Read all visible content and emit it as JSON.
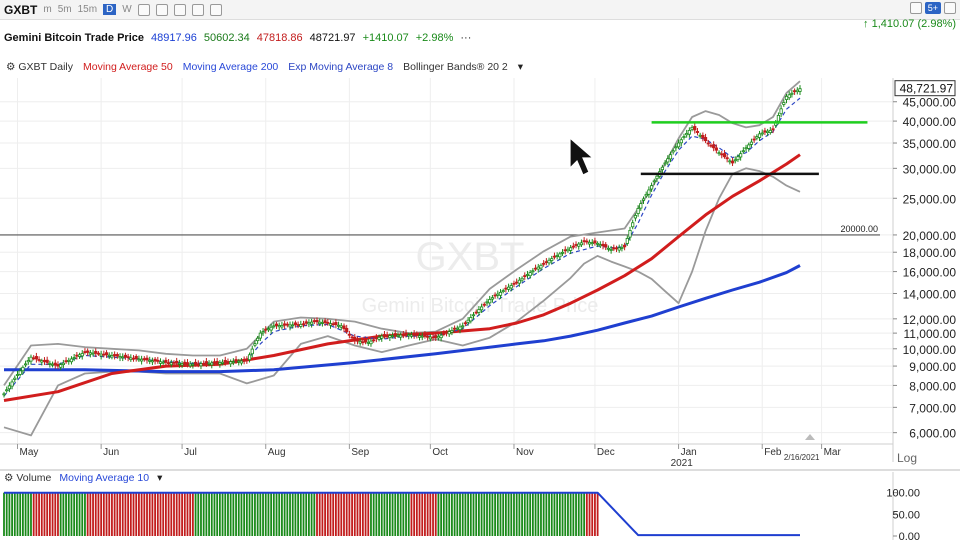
{
  "toolbar": {
    "symbol": "GXBT",
    "timeframes": [
      "m",
      "5m",
      "15m",
      "D",
      "W"
    ],
    "active_timeframe": "D",
    "badge": "5+"
  },
  "price_header": {
    "title": "Gemini Bitcoin Trade Price",
    "open": "48917.96",
    "high": "50602.34",
    "low": "47818.86",
    "close": "48721.97",
    "change": "+1410.07",
    "change_pct": "+2.98%",
    "top_change": "1,410.07 (2.98%)"
  },
  "legend": {
    "symbol": "GXBT Daily",
    "ma50": "Moving Average 50",
    "ma200": "Moving Average 200",
    "ema8": "Exp Moving Average 8",
    "bb": "Bollinger Bands® 20 2"
  },
  "colors": {
    "ma50": "#d11d1d",
    "ma200": "#1f3fd0",
    "ema8": "#2c46c4",
    "bb": "#9a9a9a",
    "up": "#1a8a1a",
    "down": "#c21d1d",
    "green_level": "#1fce1f",
    "black_level": "#111111"
  },
  "chart_data": {
    "type": "line",
    "title": "Gemini Bitcoin Trade Price (GXBT Daily)",
    "watermark": "GXBT",
    "watermark_sub": "Gemini Bitcoin Trade Price",
    "yscale": "log",
    "ylim": [
      5600,
      52000
    ],
    "y_ticks": [
      45000,
      40000,
      35000,
      30000,
      25000,
      20000,
      18000,
      16000,
      14000,
      12000,
      11000,
      10000,
      9000,
      8000,
      7000,
      6000
    ],
    "y_tick_labels": [
      "45,000.00",
      "40,000.00",
      "35,000.00",
      "30,000.00",
      "25,000.00",
      "20,000.00",
      "18,000.00",
      "16,000.00",
      "14,000.00",
      "12,000.00",
      "11,000.00",
      "10,000.00",
      "9,000.00",
      "8,000.00",
      "7,000.00",
      "6,000.00"
    ],
    "last_price_label": "48,721.97",
    "last_price": 48722,
    "x_range": [
      0,
      295
    ],
    "x_ticks": [
      {
        "t": 5,
        "label": "May"
      },
      {
        "t": 36,
        "label": "Jun"
      },
      {
        "t": 66,
        "label": "Jul"
      },
      {
        "t": 97,
        "label": "Aug"
      },
      {
        "t": 128,
        "label": "Sep"
      },
      {
        "t": 158,
        "label": "Oct"
      },
      {
        "t": 189,
        "label": "Nov"
      },
      {
        "t": 219,
        "label": "Dec"
      },
      {
        "t": 250,
        "label": "Jan"
      },
      {
        "t": 281,
        "label": "Feb"
      },
      {
        "t": 303,
        "label": "Mar"
      }
    ],
    "year_label": "2021",
    "year_at": 250,
    "date_label": "2/16/2021",
    "date_at": 292,
    "log_label": "Log",
    "annotation": {
      "label": "20000.00",
      "value": 20000
    },
    "levels": [
      {
        "name": "resistance",
        "value": 39700,
        "from": 240,
        "to": 320
      },
      {
        "name": "support",
        "value": 29000,
        "from": 236,
        "to": 302
      }
    ],
    "price": {
      "t": [
        0,
        10,
        20,
        30,
        40,
        50,
        60,
        70,
        80,
        90,
        95,
        100,
        110,
        115,
        120,
        125,
        130,
        135,
        140,
        150,
        160,
        170,
        180,
        190,
        200,
        210,
        215,
        220,
        225,
        230,
        235,
        240,
        245,
        250,
        255,
        260,
        265,
        270,
        275,
        280,
        285,
        290,
        295
      ],
      "values": [
        7600,
        9500,
        9000,
        9800,
        9600,
        9400,
        9200,
        9100,
        9200,
        9300,
        11000,
        11500,
        11600,
        11800,
        11700,
        11500,
        10500,
        10400,
        10800,
        10900,
        10700,
        11500,
        13500,
        15000,
        16800,
        18500,
        19200,
        19000,
        18300,
        18600,
        23500,
        27000,
        31000,
        35000,
        38500,
        35500,
        33000,
        31000,
        34000,
        37000,
        38000,
        46500,
        48722
      ]
    },
    "series": [
      {
        "name": "Moving Average 50",
        "t": [
          0,
          20,
          40,
          60,
          80,
          100,
          120,
          140,
          160,
          180,
          190,
          200,
          210,
          220,
          230,
          240,
          250,
          260,
          270,
          280,
          290,
          295
        ],
        "values": [
          7300,
          7700,
          8600,
          9000,
          9100,
          9600,
          10300,
          10800,
          11000,
          11300,
          11700,
          12300,
          13200,
          14300,
          15600,
          17300,
          19800,
          22600,
          25300,
          27800,
          30800,
          32600
        ]
      },
      {
        "name": "Moving Average 200",
        "t": [
          0,
          30,
          60,
          80,
          100,
          130,
          160,
          190,
          200,
          210,
          220,
          230,
          240,
          250,
          260,
          270,
          280,
          290,
          295
        ],
        "values": [
          8800,
          8800,
          8700,
          8700,
          8800,
          9200,
          9700,
          10300,
          10500,
          10800,
          11200,
          11700,
          12200,
          12900,
          13600,
          14300,
          15000,
          15900,
          16600
        ]
      },
      {
        "name": "Exp Moving Average 8",
        "t": [
          0,
          10,
          20,
          30,
          40,
          50,
          60,
          70,
          80,
          90,
          95,
          100,
          110,
          120,
          130,
          140,
          150,
          160,
          170,
          180,
          190,
          200,
          210,
          220,
          225,
          230,
          235,
          240,
          245,
          250,
          255,
          260,
          265,
          270,
          275,
          280,
          285,
          290,
          295
        ],
        "values": [
          7500,
          9100,
          9100,
          9600,
          9500,
          9400,
          9250,
          9150,
          9200,
          9300,
          10300,
          11100,
          11500,
          11600,
          10800,
          10600,
          10800,
          10800,
          11300,
          13000,
          14600,
          16300,
          17900,
          18700,
          18500,
          18600,
          21500,
          25500,
          29500,
          33500,
          36500,
          35800,
          34000,
          32000,
          33000,
          35500,
          37500,
          43000,
          46000
        ]
      },
      {
        "name": "Bollinger Upper",
        "t": [
          0,
          10,
          20,
          30,
          40,
          50,
          60,
          70,
          80,
          90,
          100,
          110,
          120,
          130,
          140,
          150,
          160,
          170,
          180,
          190,
          200,
          210,
          220,
          230,
          240,
          250,
          255,
          260,
          265,
          270,
          275,
          280,
          285,
          290,
          295
        ],
        "values": [
          8000,
          10200,
          10300,
          10100,
          10000,
          9900,
          9700,
          9600,
          9600,
          10000,
          11800,
          12100,
          12000,
          11800,
          11300,
          11000,
          11100,
          12000,
          14400,
          16200,
          18100,
          19800,
          20300,
          20800,
          26500,
          36000,
          41000,
          42500,
          41500,
          39500,
          38500,
          39000,
          41000,
          47500,
          51000
        ]
      },
      {
        "name": "Bollinger Lower",
        "t": [
          0,
          10,
          20,
          30,
          40,
          50,
          60,
          70,
          80,
          90,
          100,
          110,
          120,
          130,
          140,
          150,
          160,
          170,
          180,
          190,
          200,
          210,
          215,
          220,
          225,
          230,
          235,
          240,
          245,
          250,
          255,
          260,
          265,
          270,
          275,
          280,
          285,
          290,
          295
        ],
        "values": [
          6200,
          5900,
          8000,
          8600,
          8700,
          8700,
          8600,
          8600,
          8600,
          8100,
          8500,
          10300,
          10800,
          10200,
          9800,
          10200,
          10600,
          10200,
          10700,
          11800,
          13400,
          15400,
          16800,
          17600,
          17000,
          16500,
          16000,
          15300,
          14200,
          13200,
          16000,
          20500,
          25000,
          29000,
          30000,
          29500,
          28500,
          27000,
          26000
        ]
      }
    ],
    "volume": {
      "label": "Volume",
      "ma_label": "Moving Average 10",
      "ylim": [
        0,
        120
      ],
      "y_ticks": [
        100,
        50,
        0
      ],
      "y_tick_labels": [
        "100.00",
        "50.00",
        "0.00"
      ],
      "bars_until": 220,
      "bar_value": 100,
      "ma_line": {
        "t": [
          0,
          220,
          235,
          295
        ],
        "values": [
          100,
          100,
          2,
          2
        ]
      }
    }
  }
}
